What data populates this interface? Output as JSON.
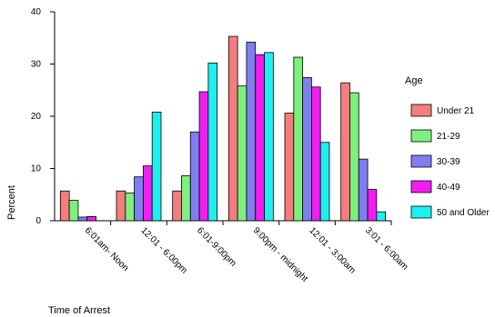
{
  "chart_data": {
    "type": "bar",
    "title": "",
    "xlabel": "Time of Arrest",
    "ylabel": "Percent",
    "ylim": [
      0,
      40
    ],
    "yticks": [
      0,
      10,
      20,
      30,
      40
    ],
    "grid": false,
    "legend": {
      "title": "Age",
      "placement": "right"
    },
    "categories": [
      "6:01am- Noon",
      "12:01 - 6:00pm",
      "6:01-9:00pm",
      "9:00pm - midnight",
      "12:01 - 3:00am",
      "3:01 - 6:00am"
    ],
    "series": [
      {
        "name": "Under 21",
        "color": "#f47e7e",
        "values": [
          5.7,
          5.7,
          5.7,
          35.3,
          20.6,
          26.4
        ]
      },
      {
        "name": "21-29",
        "color": "#7ef07e",
        "values": [
          3.9,
          5.3,
          8.6,
          25.8,
          31.3,
          24.5
        ]
      },
      {
        "name": "30-39",
        "color": "#7e7ef0",
        "values": [
          0.7,
          8.4,
          17.0,
          34.2,
          27.4,
          11.8
        ]
      },
      {
        "name": "40-49",
        "color": "#f01ef0",
        "values": [
          0.8,
          10.5,
          24.7,
          31.8,
          25.6,
          6.0
        ]
      },
      {
        "name": "50 and Older",
        "color": "#1ef0f0",
        "values": [
          0.0,
          20.8,
          30.2,
          32.2,
          15.0,
          1.7
        ]
      }
    ]
  }
}
